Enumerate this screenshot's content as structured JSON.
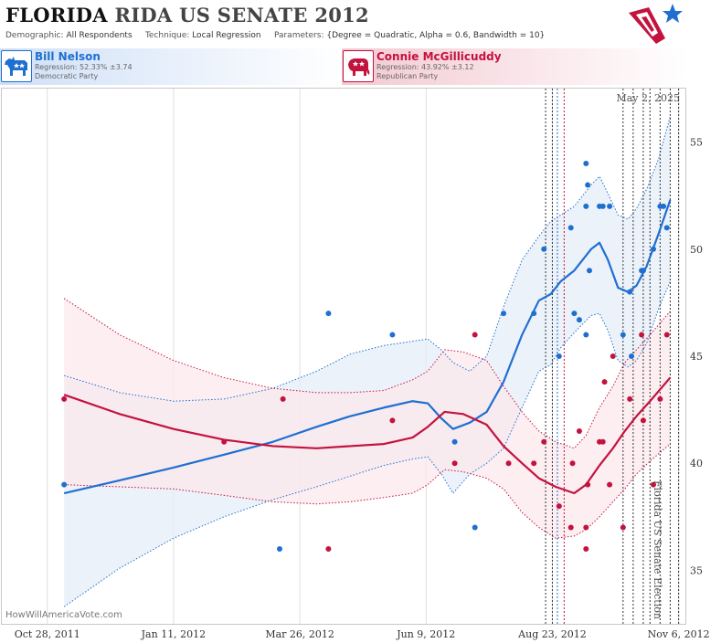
{
  "header": {
    "state": "FLORIDA",
    "title_rest": "RIDA US SENATE 2012",
    "demographic_label": "Demographic:",
    "demographic_value": "All Respondents",
    "technique_label": "Technique:",
    "technique_value": "Local Regression",
    "parameters_label": "Parameters:",
    "parameters_value": "{Degree = Quadratic, Alpha = 0.6, Bandwidth = 10}"
  },
  "candidates": {
    "dem": {
      "name": "Bill Nelson",
      "regression": "Regression: 52.33% ±3.74",
      "party": "Democratic Party",
      "color": "#1f6fd1"
    },
    "rep": {
      "name": "Connie McGillicuddy",
      "regression": "Regression: 43.92% ±3.12",
      "party": "Republican Party",
      "color": "#c4123e"
    }
  },
  "watermark": "HowWillAmericaVote.com",
  "chart_data": {
    "type": "scatter",
    "date_annotation": "May 2, 2025",
    "event_label": "Florida US Senate Election",
    "x_tick_labels": [
      "Oct 28, 2011",
      "Jan 11, 2012",
      "Mar 26, 2012",
      "Jun 9, 2012",
      "Aug 23, 2012",
      "Nov 6, 2012"
    ],
    "x_tick_dates": [
      "2011-10-28",
      "2012-01-11",
      "2012-03-26",
      "2012-06-09",
      "2012-08-23",
      "2012-11-06"
    ],
    "xlim": [
      "2011-10-01",
      "2012-11-10"
    ],
    "y_ticks": [
      35,
      40,
      45,
      50,
      55
    ],
    "ylim": [
      32.5,
      57.5
    ],
    "grid": "vertical",
    "poll_lines": {
      "blue": [
        "2012-08-26"
      ],
      "red": [
        "2012-08-30"
      ],
      "black": [
        "2012-08-19",
        "2012-08-23",
        "2012-10-04",
        "2012-10-10",
        "2012-10-16",
        "2012-10-20",
        "2012-10-26",
        "2012-11-01",
        "2012-11-06"
      ]
    },
    "series": [
      {
        "name": "Bill Nelson",
        "color": "#1f6fd1",
        "band_fill": "#e6eef8",
        "points": [
          [
            "2011-11-07",
            39
          ],
          [
            "2012-04-12",
            47
          ],
          [
            "2012-05-20",
            46
          ],
          [
            "2012-06-26",
            41
          ],
          [
            "2012-03-14",
            36
          ],
          [
            "2012-07-08",
            37
          ],
          [
            "2012-07-25",
            47
          ],
          [
            "2012-08-12",
            47
          ],
          [
            "2012-08-18",
            50
          ],
          [
            "2012-08-27",
            45
          ],
          [
            "2012-09-03",
            51
          ],
          [
            "2012-09-08",
            46.7
          ],
          [
            "2012-09-05",
            47
          ],
          [
            "2012-09-12",
            54
          ],
          [
            "2012-09-13",
            53
          ],
          [
            "2012-09-12",
            52
          ],
          [
            "2012-09-20",
            52
          ],
          [
            "2012-09-22",
            52
          ],
          [
            "2012-09-26",
            52
          ],
          [
            "2012-09-14",
            49
          ],
          [
            "2012-09-12",
            46
          ],
          [
            "2012-10-04",
            46
          ],
          [
            "2012-10-08",
            48
          ],
          [
            "2012-10-09",
            45
          ],
          [
            "2012-10-15",
            49
          ],
          [
            "2012-10-16",
            49
          ],
          [
            "2012-10-22",
            50
          ],
          [
            "2012-10-26",
            52
          ],
          [
            "2012-10-30",
            51
          ],
          [
            "2012-10-28",
            52
          ]
        ],
        "trend": [
          [
            "2011-11-07",
            38.6
          ],
          [
            "2011-12-10",
            39.2
          ],
          [
            "2012-01-11",
            39.8
          ],
          [
            "2012-02-10",
            40.4
          ],
          [
            "2012-03-10",
            41.0
          ],
          [
            "2012-04-05",
            41.7
          ],
          [
            "2012-04-25",
            42.2
          ],
          [
            "2012-05-15",
            42.6
          ],
          [
            "2012-06-01",
            42.9
          ],
          [
            "2012-06-10",
            42.8
          ],
          [
            "2012-06-18",
            42.1
          ],
          [
            "2012-06-25",
            41.6
          ],
          [
            "2012-07-05",
            41.9
          ],
          [
            "2012-07-15",
            42.4
          ],
          [
            "2012-07-25",
            43.8
          ],
          [
            "2012-08-05",
            46.0
          ],
          [
            "2012-08-15",
            47.6
          ],
          [
            "2012-08-22",
            47.9
          ],
          [
            "2012-08-28",
            48.5
          ],
          [
            "2012-09-05",
            49.0
          ],
          [
            "2012-09-15",
            50.0
          ],
          [
            "2012-09-20",
            50.3
          ],
          [
            "2012-09-25",
            49.5
          ],
          [
            "2012-10-01",
            48.2
          ],
          [
            "2012-10-07",
            48.0
          ],
          [
            "2012-10-12",
            48.3
          ],
          [
            "2012-10-18",
            49.2
          ],
          [
            "2012-10-25",
            50.7
          ],
          [
            "2012-11-01",
            52.3
          ]
        ],
        "upper": [
          [
            "2011-11-07",
            44.1
          ],
          [
            "2011-12-10",
            43.3
          ],
          [
            "2012-01-11",
            42.9
          ],
          [
            "2012-02-10",
            43.0
          ],
          [
            "2012-03-10",
            43.5
          ],
          [
            "2012-04-05",
            44.3
          ],
          [
            "2012-04-25",
            45.1
          ],
          [
            "2012-05-15",
            45.5
          ],
          [
            "2012-06-01",
            45.7
          ],
          [
            "2012-06-10",
            45.8
          ],
          [
            "2012-06-18",
            45.3
          ],
          [
            "2012-06-25",
            44.7
          ],
          [
            "2012-07-05",
            44.3
          ],
          [
            "2012-07-15",
            45.0
          ],
          [
            "2012-07-25",
            47.3
          ],
          [
            "2012-08-05",
            49.5
          ],
          [
            "2012-08-15",
            50.6
          ],
          [
            "2012-08-22",
            51.3
          ],
          [
            "2012-08-28",
            51.6
          ],
          [
            "2012-09-05",
            52.0
          ],
          [
            "2012-09-15",
            53.0
          ],
          [
            "2012-09-20",
            53.4
          ],
          [
            "2012-09-25",
            52.6
          ],
          [
            "2012-10-01",
            51.6
          ],
          [
            "2012-10-07",
            51.4
          ],
          [
            "2012-10-12",
            51.9
          ],
          [
            "2012-10-18",
            52.8
          ],
          [
            "2012-10-25",
            54.2
          ],
          [
            "2012-11-01",
            56.2
          ]
        ],
        "lower": [
          [
            "2011-11-07",
            33.3
          ],
          [
            "2011-12-10",
            35.1
          ],
          [
            "2012-01-11",
            36.5
          ],
          [
            "2012-02-10",
            37.5
          ],
          [
            "2012-03-10",
            38.3
          ],
          [
            "2012-04-05",
            38.9
          ],
          [
            "2012-04-25",
            39.4
          ],
          [
            "2012-05-15",
            39.9
          ],
          [
            "2012-06-01",
            40.2
          ],
          [
            "2012-06-10",
            40.3
          ],
          [
            "2012-06-18",
            39.5
          ],
          [
            "2012-06-25",
            38.6
          ],
          [
            "2012-07-05",
            39.5
          ],
          [
            "2012-07-15",
            40.0
          ],
          [
            "2012-07-25",
            40.7
          ],
          [
            "2012-08-05",
            42.6
          ],
          [
            "2012-08-15",
            44.3
          ],
          [
            "2012-08-22",
            44.6
          ],
          [
            "2012-08-28",
            45.4
          ],
          [
            "2012-09-05",
            46.1
          ],
          [
            "2012-09-15",
            46.9
          ],
          [
            "2012-09-20",
            47.0
          ],
          [
            "2012-09-25",
            46.2
          ],
          [
            "2012-10-01",
            44.8
          ],
          [
            "2012-10-07",
            44.5
          ],
          [
            "2012-10-12",
            44.8
          ],
          [
            "2012-10-18",
            45.6
          ],
          [
            "2012-10-25",
            47.2
          ],
          [
            "2012-11-01",
            48.5
          ]
        ]
      },
      {
        "name": "Connie McGillicuddy",
        "color": "#c4123e",
        "band_fill": "#fbe8ec",
        "points": [
          [
            "2011-11-07",
            43
          ],
          [
            "2012-02-10",
            41
          ],
          [
            "2012-03-16",
            43
          ],
          [
            "2012-04-12",
            36
          ],
          [
            "2012-05-20",
            42
          ],
          [
            "2012-06-26",
            40
          ],
          [
            "2012-07-08",
            46
          ],
          [
            "2012-07-28",
            40
          ],
          [
            "2012-08-12",
            40
          ],
          [
            "2012-08-18",
            41
          ],
          [
            "2012-08-27",
            38
          ],
          [
            "2012-09-03",
            37
          ],
          [
            "2012-09-04",
            40
          ],
          [
            "2012-09-08",
            41.5
          ],
          [
            "2012-09-12",
            37
          ],
          [
            "2012-09-12",
            36
          ],
          [
            "2012-09-13",
            39
          ],
          [
            "2012-09-20",
            41
          ],
          [
            "2012-09-22",
            41
          ],
          [
            "2012-09-26",
            39
          ],
          [
            "2012-09-23",
            43.8
          ],
          [
            "2012-10-04",
            37
          ],
          [
            "2012-09-28",
            45
          ],
          [
            "2012-10-08",
            43
          ],
          [
            "2012-10-15",
            46
          ],
          [
            "2012-10-16",
            42
          ],
          [
            "2012-10-22",
            39
          ],
          [
            "2012-10-26",
            43
          ],
          [
            "2012-10-30",
            46
          ]
        ],
        "trend": [
          [
            "2011-11-07",
            43.2
          ],
          [
            "2011-12-10",
            42.3
          ],
          [
            "2012-01-11",
            41.6
          ],
          [
            "2012-02-10",
            41.1
          ],
          [
            "2012-03-10",
            40.8
          ],
          [
            "2012-04-05",
            40.7
          ],
          [
            "2012-04-25",
            40.8
          ],
          [
            "2012-05-15",
            40.9
          ],
          [
            "2012-06-01",
            41.2
          ],
          [
            "2012-06-10",
            41.7
          ],
          [
            "2012-06-20",
            42.4
          ],
          [
            "2012-07-01",
            42.3
          ],
          [
            "2012-07-15",
            41.8
          ],
          [
            "2012-07-25",
            40.8
          ],
          [
            "2012-08-05",
            40.0
          ],
          [
            "2012-08-15",
            39.3
          ],
          [
            "2012-08-25",
            38.9
          ],
          [
            "2012-09-05",
            38.6
          ],
          [
            "2012-09-12",
            39.0
          ],
          [
            "2012-09-20",
            39.9
          ],
          [
            "2012-09-28",
            40.7
          ],
          [
            "2012-10-05",
            41.5
          ],
          [
            "2012-10-12",
            42.2
          ],
          [
            "2012-10-20",
            42.9
          ],
          [
            "2012-11-01",
            44.0
          ]
        ],
        "upper": [
          [
            "2011-11-07",
            47.7
          ],
          [
            "2011-12-10",
            46.0
          ],
          [
            "2012-01-11",
            44.8
          ],
          [
            "2012-02-10",
            44.0
          ],
          [
            "2012-03-10",
            43.5
          ],
          [
            "2012-04-05",
            43.3
          ],
          [
            "2012-04-25",
            43.3
          ],
          [
            "2012-05-15",
            43.4
          ],
          [
            "2012-06-01",
            43.9
          ],
          [
            "2012-06-10",
            44.3
          ],
          [
            "2012-06-20",
            45.3
          ],
          [
            "2012-07-01",
            45.2
          ],
          [
            "2012-07-15",
            44.8
          ],
          [
            "2012-07-25",
            43.6
          ],
          [
            "2012-08-05",
            42.4
          ],
          [
            "2012-08-15",
            41.5
          ],
          [
            "2012-08-25",
            41.0
          ],
          [
            "2012-09-05",
            40.7
          ],
          [
            "2012-09-12",
            41.3
          ],
          [
            "2012-09-20",
            42.6
          ],
          [
            "2012-09-28",
            43.6
          ],
          [
            "2012-10-05",
            44.7
          ],
          [
            "2012-10-12",
            45.3
          ],
          [
            "2012-10-20",
            46.0
          ],
          [
            "2012-11-01",
            47.1
          ]
        ],
        "lower": [
          [
            "2011-11-07",
            39.0
          ],
          [
            "2011-12-10",
            38.9
          ],
          [
            "2012-01-11",
            38.8
          ],
          [
            "2012-02-10",
            38.5
          ],
          [
            "2012-03-10",
            38.2
          ],
          [
            "2012-04-05",
            38.1
          ],
          [
            "2012-04-25",
            38.2
          ],
          [
            "2012-05-15",
            38.4
          ],
          [
            "2012-06-01",
            38.6
          ],
          [
            "2012-06-10",
            39.0
          ],
          [
            "2012-06-20",
            39.7
          ],
          [
            "2012-07-01",
            39.6
          ],
          [
            "2012-07-15",
            39.3
          ],
          [
            "2012-07-25",
            38.8
          ],
          [
            "2012-08-05",
            37.7
          ],
          [
            "2012-08-15",
            37.0
          ],
          [
            "2012-08-25",
            36.5
          ],
          [
            "2012-09-05",
            36.6
          ],
          [
            "2012-09-12",
            36.9
          ],
          [
            "2012-09-20",
            37.5
          ],
          [
            "2012-09-28",
            38.2
          ],
          [
            "2012-10-05",
            38.8
          ],
          [
            "2012-10-12",
            39.5
          ],
          [
            "2012-10-20",
            40.1
          ],
          [
            "2012-11-01",
            40.9
          ]
        ]
      }
    ]
  }
}
